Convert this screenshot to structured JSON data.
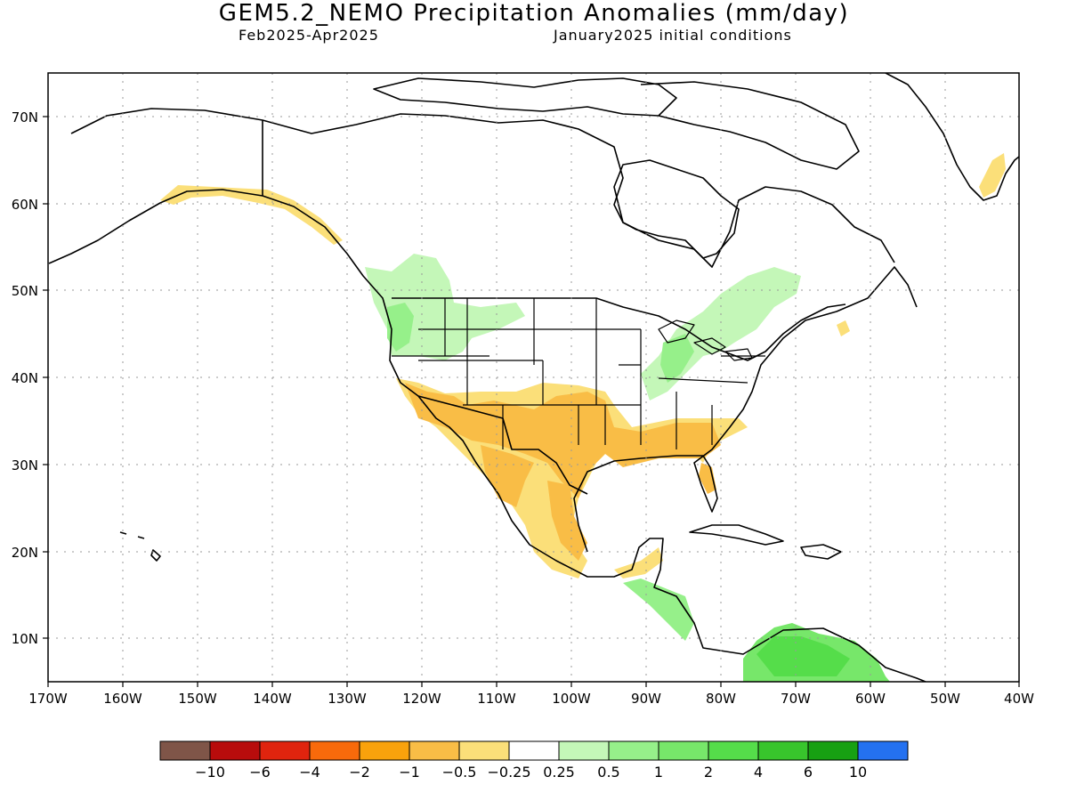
{
  "header": {
    "title": "GEM5.2_NEMO Precipitation Anomalies (mm/day)",
    "period": "Feb2025-Apr2025",
    "init": "January2025 initial conditions"
  },
  "axes": {
    "lat_labels": [
      "70N",
      "60N",
      "50N",
      "40N",
      "30N",
      "20N",
      "10N"
    ],
    "lon_labels": [
      "170W",
      "160W",
      "150W",
      "140W",
      "130W",
      "120W",
      "110W",
      "100W",
      "90W",
      "80W",
      "70W",
      "60W",
      "50W",
      "40W"
    ]
  },
  "legend": {
    "colors": [
      "#7f5548",
      "#b80c0c",
      "#e0240e",
      "#f86a0b",
      "#f9a20c",
      "#f9bd46",
      "#fbdf79",
      "#ffffff",
      "#c4f7b8",
      "#96f08a",
      "#77e76a",
      "#55dd4a",
      "#38c52c",
      "#17a012",
      "#2471f0"
    ],
    "labels": [
      "-10",
      "-6",
      "-4",
      "-2",
      "-1",
      "-0.5",
      "-0.25",
      "0.25",
      "0.5",
      "1",
      "2",
      "4",
      "6",
      "10"
    ]
  },
  "colors": {
    "dry_light": "#fbdf79",
    "dry_mid": "#f9bd46",
    "dry_strong": "#f9a20c",
    "wet_light": "#c4f7b8",
    "wet_mid": "#96f08a",
    "wet_strong": "#55dd4a"
  }
}
